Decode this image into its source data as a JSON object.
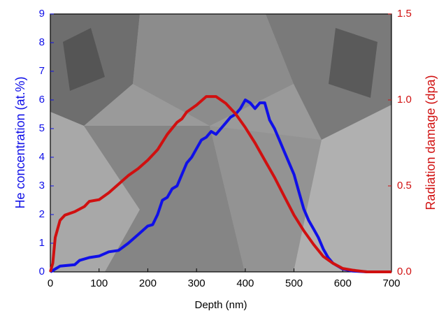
{
  "chart_data": {
    "type": "line",
    "xlabel": "Depth (nm)",
    "xlim": [
      0,
      700
    ],
    "xticks": [
      0,
      100,
      200,
      300,
      400,
      500,
      600,
      700
    ],
    "ylim": [
      0,
      9
    ],
    "yticks": [
      0,
      1,
      2,
      3,
      4,
      5,
      6,
      7,
      8,
      9
    ],
    "y2lim": [
      0,
      1.5
    ],
    "y2ticks": [
      {
        "value": 0,
        "label": "0.0"
      },
      {
        "value": 0.5,
        "label": "0.5"
      },
      {
        "value": 1,
        "label": "1.0"
      },
      {
        "value": 1.5,
        "label": "1.5"
      }
    ],
    "series": [
      {
        "name": "He concentration (at.%)",
        "color": "#1010e8",
        "x": [
          0,
          10,
          20,
          50,
          60,
          80,
          100,
          120,
          140,
          160,
          180,
          200,
          210,
          220,
          230,
          240,
          250,
          260,
          270,
          280,
          290,
          300,
          310,
          320,
          330,
          340,
          350,
          360,
          370,
          380,
          390,
          400,
          410,
          420,
          430,
          440,
          450,
          460,
          470,
          480,
          490,
          500,
          510,
          520,
          530,
          540,
          550,
          560,
          570,
          580,
          590,
          600,
          620,
          650,
          700
        ],
        "values": [
          0,
          0.1,
          0.2,
          0.25,
          0.4,
          0.5,
          0.55,
          0.7,
          0.75,
          1.0,
          1.3,
          1.6,
          1.65,
          2.0,
          2.5,
          2.6,
          2.9,
          3.0,
          3.4,
          3.8,
          4.0,
          4.3,
          4.6,
          4.7,
          4.9,
          4.8,
          5.0,
          5.2,
          5.4,
          5.5,
          5.7,
          6.0,
          5.9,
          5.7,
          5.9,
          5.9,
          5.3,
          5.0,
          4.6,
          4.2,
          3.8,
          3.4,
          2.8,
          2.2,
          1.8,
          1.5,
          1.2,
          0.8,
          0.5,
          0.3,
          0.2,
          0.1,
          0.03,
          0,
          0
        ]
      },
      {
        "name": "Radiation damage (dpa)",
        "color": "#d01010",
        "axis": "y2",
        "x": [
          0,
          5,
          10,
          20,
          30,
          50,
          70,
          80,
          100,
          120,
          140,
          160,
          180,
          200,
          220,
          240,
          260,
          270,
          280,
          300,
          320,
          340,
          360,
          380,
          400,
          420,
          440,
          460,
          480,
          500,
          520,
          540,
          560,
          580,
          600,
          620,
          650,
          700
        ],
        "values": [
          0,
          0.05,
          0.2,
          0.3,
          0.33,
          0.35,
          0.38,
          0.41,
          0.42,
          0.46,
          0.51,
          0.56,
          0.6,
          0.65,
          0.71,
          0.8,
          0.87,
          0.89,
          0.93,
          0.97,
          1.02,
          1.02,
          0.98,
          0.92,
          0.84,
          0.75,
          0.65,
          0.55,
          0.44,
          0.33,
          0.24,
          0.16,
          0.09,
          0.05,
          0.02,
          0.01,
          0,
          0
        ]
      }
    ]
  }
}
